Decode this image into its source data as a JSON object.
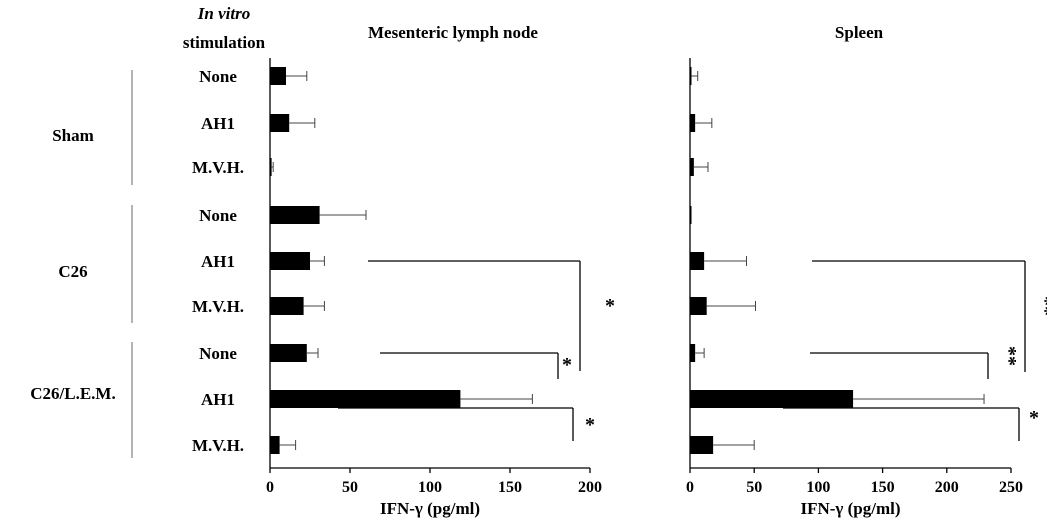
{
  "header": {
    "stim_line1": "In vitro",
    "stim_line2": "stimulation"
  },
  "groups": [
    "Sham",
    "C26",
    "C26/L.E.M."
  ],
  "conditions": [
    "None",
    "AH1",
    "M.V.H.",
    "None",
    "AH1",
    "M.V.H.",
    "None",
    "AH1",
    "M.V.H."
  ],
  "colors": {
    "bar": "#000000",
    "axis": "#000000",
    "divider": "#9a9a9a"
  },
  "chart_data": [
    {
      "type": "bar",
      "orientation": "horizontal",
      "title": "Mesenteric lymph node",
      "xlabel": "IFN-γ (pg/ml)",
      "xlim": [
        0,
        200
      ],
      "xticks": [
        "0",
        "50",
        "100",
        "150",
        "200"
      ],
      "categories": [
        "None",
        "AH1",
        "M.V.H.",
        "None",
        "AH1",
        "M.V.H.",
        "None",
        "AH1",
        "M.V.H."
      ],
      "values": [
        10,
        12,
        1,
        31,
        25,
        21,
        23,
        119,
        6
      ],
      "errors": [
        13,
        16,
        1,
        29,
        9,
        13,
        7,
        45,
        10
      ],
      "significance": [
        {
          "label": "*",
          "between": [
            "C26 AH1",
            "C26/L.E.M. None"
          ]
        },
        {
          "label": "*",
          "between": [
            "C26/L.E.M. None",
            "C26/L.E.M. AH1"
          ]
        },
        {
          "label": "*",
          "between": [
            "C26/L.E.M. M.V.H.",
            "C26/L.E.M. AH1"
          ]
        }
      ]
    },
    {
      "type": "bar",
      "orientation": "horizontal",
      "title": "Spleen",
      "xlabel": "IFN-γ (pg/ml)",
      "xlim": [
        0,
        250
      ],
      "xticks": [
        "0",
        "50",
        "100",
        "150",
        "200",
        "250"
      ],
      "categories": [
        "None",
        "AH1",
        "M.V.H.",
        "None",
        "AH1",
        "M.V.H.",
        "None",
        "AH1",
        "M.V.H."
      ],
      "values": [
        1,
        4,
        3,
        1,
        11,
        13,
        4,
        127,
        18
      ],
      "errors": [
        5,
        13,
        11,
        0,
        33,
        38,
        7,
        102,
        32
      ],
      "significance": [
        {
          "label": "**",
          "between": [
            "C26 AH1",
            "C26/L.E.M. AH1"
          ]
        },
        {
          "label": "**",
          "between": [
            "C26/L.E.M. None",
            "C26/L.E.M. AH1"
          ]
        },
        {
          "label": "*",
          "between": [
            "C26/L.E.M. M.V.H.",
            "C26/L.E.M. AH1"
          ]
        }
      ]
    }
  ]
}
